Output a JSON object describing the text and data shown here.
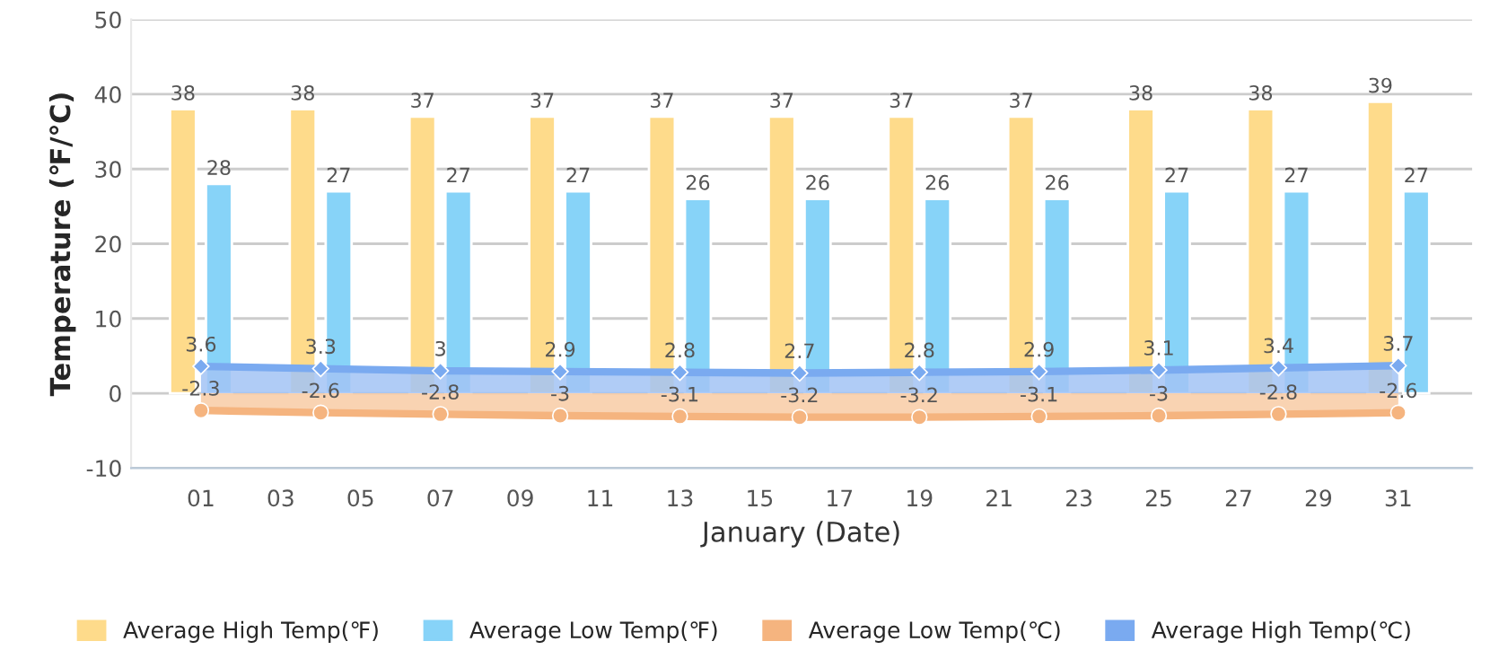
{
  "chart_data": {
    "type": "bar",
    "xlabel": "January (Date)",
    "ylabel": "Temperature (℉/℃)",
    "x": [
      1,
      4,
      7,
      10,
      13,
      16,
      19,
      22,
      25,
      28,
      31
    ],
    "xlim": [
      -0.75,
      32.85
    ],
    "xticks": [
      {
        "value": 1,
        "label": "01"
      },
      {
        "value": 3,
        "label": "03"
      },
      {
        "value": 5,
        "label": "05"
      },
      {
        "value": 7,
        "label": "07"
      },
      {
        "value": 9,
        "label": "09"
      },
      11,
      13,
      15,
      17,
      19,
      21,
      23,
      25,
      27,
      29,
      31
    ],
    "ylim": [
      -10,
      50
    ],
    "yticks": [
      -10,
      0,
      10,
      20,
      30,
      40,
      50
    ],
    "grid": "y",
    "legend": "bottom",
    "data_labels": true,
    "series": [
      {
        "name": "Average High Temp(℉)",
        "color": "#fedb8b",
        "values": [
          38,
          38,
          37,
          37,
          37,
          37,
          37,
          37,
          38,
          38,
          39
        ]
      },
      {
        "name": "Average Low Temp(℉)",
        "color": "#87d3f8",
        "values": [
          28,
          27,
          27,
          27,
          26,
          26,
          26,
          26,
          27,
          27,
          27
        ]
      },
      {
        "name": "Average Low Temp(℃)",
        "type": "area",
        "color": "#f5b47f",
        "marker": "circle",
        "values": [
          -2.3,
          -2.6,
          -2.8,
          -3,
          -3.1,
          -3.2,
          -3.2,
          -3.1,
          -3,
          -2.8,
          -2.6
        ]
      },
      {
        "name": "Average High Temp(℃)",
        "type": "area",
        "color": "#7aaaf0",
        "marker": "diamond",
        "values": [
          3.6,
          3.3,
          3,
          2.9,
          2.8,
          2.7,
          2.8,
          2.9,
          3.1,
          3.4,
          3.7
        ]
      }
    ]
  }
}
